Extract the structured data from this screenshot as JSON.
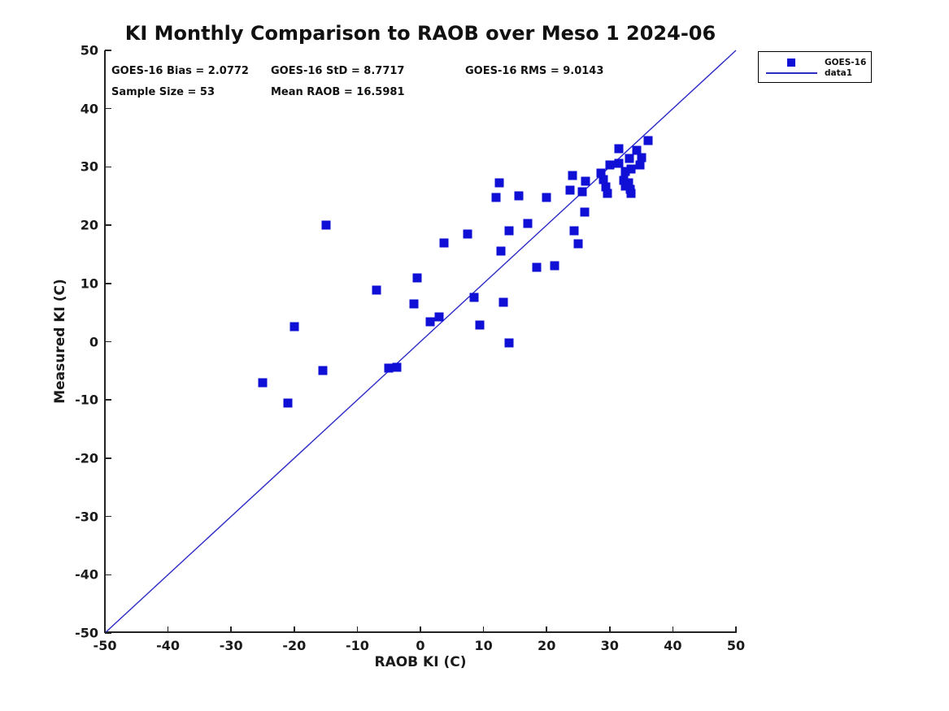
{
  "title": "KI Monthly Comparison to RAOB over Meso 1 2024-06",
  "stats": {
    "bias": "GOES-16 Bias = 2.0772",
    "std": "GOES-16 StD = 8.7717",
    "rms": "GOES-16 RMS = 9.0143",
    "sample_size": "Sample Size = 53",
    "mean_raob": "Mean RAOB = 16.5981"
  },
  "legend": {
    "marker_entry_label": "GOES-16",
    "line_entry_label": "data1"
  },
  "colors": {
    "marker_blue": "#0f0fd6",
    "line_blue": "#2b2bc6",
    "axis_black": "#222222"
  },
  "chart_data": {
    "type": "scatter",
    "title": "KI Monthly Comparison to RAOB over Meso 1 2024-06",
    "xlabel": "RAOB KI (C)",
    "ylabel": "Measured KI (C)",
    "xlim": [
      -50,
      50
    ],
    "ylim": [
      -50,
      50
    ],
    "xticks": [
      -50,
      -40,
      -30,
      -20,
      -10,
      0,
      10,
      20,
      30,
      40,
      50
    ],
    "yticks": [
      -50,
      -40,
      -30,
      -20,
      -10,
      0,
      10,
      20,
      30,
      40,
      50
    ],
    "grid": false,
    "legend_position": "outside-top-right",
    "annotations": [
      "GOES-16 Bias = 2.0772",
      "GOES-16 StD = 8.7717",
      "GOES-16 RMS = 9.0143",
      "Sample Size = 53",
      "Mean RAOB = 16.5981"
    ],
    "series": [
      {
        "name": "GOES-16",
        "type": "scatter",
        "marker": "square",
        "color": "#0f0fd6",
        "points": [
          [
            -25,
            -7
          ],
          [
            -21,
            -10.5
          ],
          [
            -20,
            2.6
          ],
          [
            -15.5,
            -5
          ],
          [
            -15,
            20
          ],
          [
            -7,
            8.8
          ],
          [
            -5,
            -4.6
          ],
          [
            -3.8,
            -4.4
          ],
          [
            -1,
            6.5
          ],
          [
            -0.5,
            10.9
          ],
          [
            1.5,
            3.4
          ],
          [
            3,
            4.3
          ],
          [
            3.7,
            17
          ],
          [
            7.5,
            18.5
          ],
          [
            8.5,
            7.6
          ],
          [
            9.4,
            2.9
          ],
          [
            12,
            24.8
          ],
          [
            12.5,
            27.2
          ],
          [
            12.8,
            15.5
          ],
          [
            13.2,
            6.7
          ],
          [
            14,
            19
          ],
          [
            14,
            -0.2
          ],
          [
            15.6,
            25
          ],
          [
            17,
            20.3
          ],
          [
            18.4,
            12.8
          ],
          [
            20,
            24.8
          ],
          [
            21.2,
            13.1
          ],
          [
            23.7,
            26
          ],
          [
            24.1,
            28.5
          ],
          [
            24.3,
            19
          ],
          [
            25,
            16.8
          ],
          [
            25.6,
            25.8
          ],
          [
            26,
            22.3
          ],
          [
            26.2,
            27.5
          ],
          [
            28.6,
            29
          ],
          [
            29,
            27.8
          ],
          [
            29.4,
            26.6
          ],
          [
            29.6,
            25.4
          ],
          [
            30,
            30.4
          ],
          [
            31.5,
            33.1
          ],
          [
            31.5,
            30.6
          ],
          [
            32.5,
            29.2
          ],
          [
            32.2,
            27.7
          ],
          [
            33,
            27.3
          ],
          [
            32.5,
            26.7
          ],
          [
            33.2,
            26.2
          ],
          [
            33.4,
            25.5
          ],
          [
            33.1,
            31.4
          ],
          [
            33.4,
            29.6
          ],
          [
            34.3,
            32.8
          ],
          [
            35,
            31.6
          ],
          [
            34.8,
            30.3
          ],
          [
            36.1,
            34.5
          ]
        ]
      },
      {
        "name": "data1",
        "type": "line",
        "color": "#2b2bc6",
        "points": [
          [
            -50,
            -50
          ],
          [
            50,
            50
          ]
        ]
      }
    ]
  }
}
